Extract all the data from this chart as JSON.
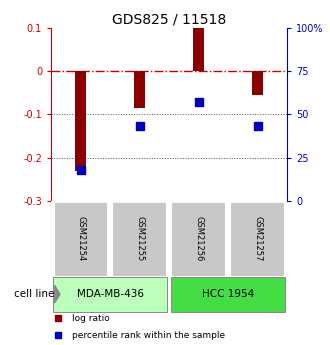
{
  "title": "GDS825 / 11518",
  "samples": [
    "GSM21254",
    "GSM21255",
    "GSM21256",
    "GSM21257"
  ],
  "log_ratio": [
    -0.23,
    -0.085,
    0.1,
    -0.055
  ],
  "percentile_rank": [
    0.18,
    0.43,
    0.57,
    0.43
  ],
  "ylim_left": [
    -0.3,
    0.1
  ],
  "ylim_right": [
    0.0,
    1.0
  ],
  "yticks_left": [
    -0.3,
    -0.2,
    -0.1,
    0.0,
    0.1
  ],
  "ytick_labels_left": [
    "-0.3",
    "-0.2",
    "-0.1",
    "0",
    "0.1"
  ],
  "yticks_right_vals": [
    0.0,
    0.25,
    0.5,
    0.75,
    1.0
  ],
  "ytick_labels_right": [
    "0",
    "25",
    "50",
    "75",
    "100%"
  ],
  "cell_lines": [
    {
      "label": "MDA-MB-436",
      "samples": [
        0,
        1
      ],
      "color": "#bbffbb"
    },
    {
      "label": "HCC 1954",
      "samples": [
        2,
        3
      ],
      "color": "#44dd44"
    }
  ],
  "bar_color": "#8b0000",
  "dot_color": "#0000bb",
  "cell_line_label": "cell line",
  "legend_log_ratio": "log ratio",
  "legend_percentile": "percentile rank within the sample",
  "bar_width": 0.18,
  "hline_color": "#cc0000",
  "dotted_line_color": "#555555",
  "background_plot": "#ffffff",
  "background_gsm": "#c8c8c8",
  "dot_size": 28,
  "title_fontsize": 10,
  "tick_fontsize": 7,
  "label_fontsize": 7,
  "legend_fontsize": 6.5
}
